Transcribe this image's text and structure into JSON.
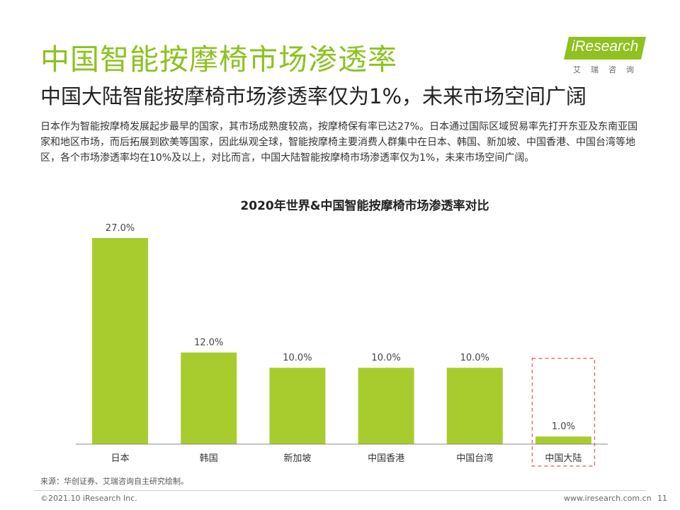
{
  "header": {
    "title": "中国智能按摩椅市场渗透率",
    "subtitle": "中国大陆智能按摩椅市场渗透率仅为1%，未来市场空间广阔",
    "paragraph": "日本作为智能按摩椅发展起步最早的国家，其市场成熟度较高，按摩椅保有率已达27%。日本通过国际区域贸易率先打开东亚及东南亚国家和地区市场，而后拓展到欧美等国家，因此纵观全球，智能按摩椅主要消费人群集中在日本、韩国、新加坡、中国香港、中国台湾等地区，各个市场渗透率均在10%及以上，对比而言，中国大陆智能按摩椅市场渗透率仅为1%，未来市场空间广阔。"
  },
  "logo": {
    "brand": "iResearch",
    "tagline": "艾瑞咨询"
  },
  "chart_data": {
    "type": "bar",
    "title": "2020年世界&中国智能按摩椅市场渗透率对比",
    "categories": [
      "日本",
      "韩国",
      "新加坡",
      "中国香港",
      "中国台湾",
      "中国大陆"
    ],
    "values": [
      27.0,
      12.0,
      10.0,
      10.0,
      10.0,
      1.0
    ],
    "value_labels": [
      "27.0%",
      "12.0%",
      "10.0%",
      "10.0%",
      "10.0%",
      "1.0%"
    ],
    "bar_color": "#a8cc2e",
    "highlight_color": "#e57373",
    "highlight_index": 5,
    "ylim": [
      0,
      27
    ],
    "grid": false
  },
  "footer": {
    "source": "来源：华创证券、艾瑞咨询自主研究绘制。",
    "copyright": "©2021.10 iResearch Inc.",
    "website": "www.iresearch.com.cn",
    "page": "11"
  }
}
